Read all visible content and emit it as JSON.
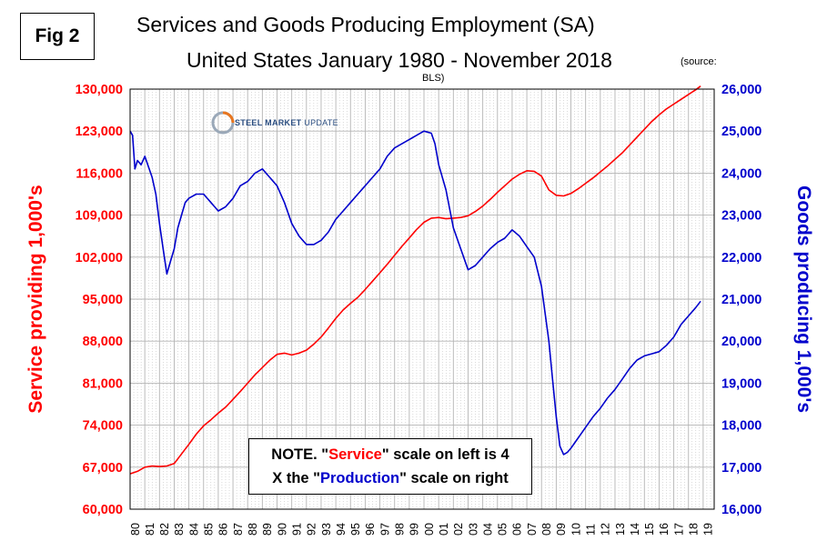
{
  "fig_label": "Fig 2",
  "title_line1": "Services and Goods Producing Employment (SA)",
  "title_line2": "United States January 1980 - November 2018",
  "source_part1": "(source:",
  "source_part2": "BLS)",
  "logo": {
    "bold": "STEEL MARKET",
    "light": "UPDATE"
  },
  "note": {
    "prefix1": "NOTE. \"",
    "service": "Service",
    "suffix1": "\" scale on left  is 4",
    "prefix2": "X the \"",
    "production": "Production",
    "suffix2": "\" scale on right"
  },
  "colors": {
    "service": "#ff0000",
    "goods": "#0000cc",
    "grid": "#b4b4b4"
  },
  "chart_data": {
    "type": "line",
    "title": "Services and Goods Producing Employment (SA) United States January 1980 - November 2018",
    "ylabel_left": "Service providing 1,000's",
    "ylabel_right": "Goods producing 1,000's",
    "ylim_left": [
      60000,
      130000
    ],
    "ylim_right": [
      16000,
      26000
    ],
    "yticks_left": [
      "130,000",
      "123,000",
      "116,000",
      "109,000",
      "102,000",
      "95,000",
      "88,000",
      "81,000",
      "74,000",
      "67,000",
      "60,000"
    ],
    "yticks_right": [
      "26,000",
      "25,000",
      "24,000",
      "23,000",
      "22,000",
      "21,000",
      "20,000",
      "19,000",
      "18,000",
      "17,000",
      "16,000"
    ],
    "xlim": [
      1980.0,
      2019.75
    ],
    "xticks": [
      "80",
      "81",
      "82",
      "83",
      "84",
      "85",
      "86",
      "87",
      "88",
      "89",
      "90",
      "91",
      "92",
      "93",
      "94",
      "95",
      "96",
      "97",
      "98",
      "99",
      "00",
      "01",
      "02",
      "03",
      "04",
      "05",
      "06",
      "07",
      "08",
      "09",
      "10",
      "11",
      "12",
      "13",
      "14",
      "15",
      "16",
      "17",
      "18",
      "19"
    ],
    "grid": true,
    "series": [
      {
        "name": "Service",
        "axis": "left",
        "color": "#ff0000",
        "x": [
          1980.0,
          1980.5,
          1981.0,
          1981.5,
          1982.0,
          1982.5,
          1983.0,
          1983.5,
          1984.0,
          1984.5,
          1985.0,
          1985.5,
          1986.0,
          1986.5,
          1987.0,
          1987.5,
          1988.0,
          1988.5,
          1989.0,
          1989.5,
          1990.0,
          1990.5,
          1991.0,
          1991.5,
          1992.0,
          1992.5,
          1993.0,
          1993.5,
          1994.0,
          1994.5,
          1995.0,
          1995.5,
          1996.0,
          1996.5,
          1997.0,
          1997.5,
          1998.0,
          1998.5,
          1999.0,
          1999.5,
          2000.0,
          2000.5,
          2001.0,
          2001.5,
          2002.0,
          2002.5,
          2003.0,
          2003.5,
          2004.0,
          2004.5,
          2005.0,
          2005.5,
          2006.0,
          2006.5,
          2007.0,
          2007.5,
          2008.0,
          2008.5,
          2009.0,
          2009.5,
          2010.0,
          2010.5,
          2011.0,
          2011.5,
          2012.0,
          2012.5,
          2013.0,
          2013.5,
          2014.0,
          2014.5,
          2015.0,
          2015.5,
          2016.0,
          2016.5,
          2017.0,
          2017.5,
          2018.0,
          2018.5,
          2018.83
        ],
        "values": [
          65900,
          66300,
          67000,
          67200,
          67100,
          67200,
          67600,
          69200,
          70800,
          72500,
          73900,
          74900,
          76000,
          77000,
          78300,
          79600,
          81000,
          82400,
          83600,
          84800,
          85800,
          86000,
          85700,
          86000,
          86500,
          87500,
          88700,
          90200,
          91800,
          93200,
          94300,
          95300,
          96600,
          98000,
          99400,
          100800,
          102300,
          103800,
          105200,
          106600,
          107800,
          108500,
          108600,
          108400,
          108500,
          108600,
          108900,
          109600,
          110500,
          111600,
          112800,
          113900,
          115000,
          115800,
          116400,
          116300,
          115500,
          113200,
          112300,
          112200,
          112600,
          113400,
          114300,
          115200,
          116200,
          117200,
          118300,
          119400,
          120700,
          122000,
          123300,
          124600,
          125700,
          126700,
          127500,
          128300,
          129100,
          129900,
          130500
        ]
      },
      {
        "name": "Goods",
        "axis": "right",
        "color": "#0000cc",
        "x": [
          1980.0,
          1980.17,
          1980.33,
          1980.5,
          1980.75,
          1981.0,
          1981.5,
          1981.75,
          1982.0,
          1982.25,
          1982.5,
          1982.75,
          1983.0,
          1983.25,
          1983.5,
          1983.75,
          1984.0,
          1984.5,
          1985.0,
          1985.5,
          1986.0,
          1986.5,
          1987.0,
          1987.5,
          1988.0,
          1988.5,
          1989.0,
          1989.5,
          1990.0,
          1990.5,
          1991.0,
          1991.5,
          1992.0,
          1992.5,
          1993.0,
          1993.5,
          1994.0,
          1994.5,
          1995.0,
          1995.5,
          1996.0,
          1996.5,
          1997.0,
          1997.5,
          1998.0,
          1998.5,
          1999.0,
          1999.5,
          2000.0,
          2000.5,
          2000.75,
          2001.0,
          2001.5,
          2002.0,
          2002.5,
          2003.0,
          2003.5,
          2004.0,
          2004.5,
          2005.0,
          2005.5,
          2006.0,
          2006.5,
          2007.0,
          2007.5,
          2008.0,
          2008.5,
          2008.75,
          2009.0,
          2009.25,
          2009.5,
          2009.75,
          2010.0,
          2010.5,
          2011.0,
          2011.5,
          2012.0,
          2012.5,
          2013.0,
          2013.5,
          2014.0,
          2014.5,
          2015.0,
          2015.5,
          2016.0,
          2016.5,
          2017.0,
          2017.5,
          2018.0,
          2018.5,
          2018.83
        ],
        "values": [
          25000,
          24900,
          24100,
          24300,
          24200,
          24400,
          23900,
          23500,
          22800,
          22200,
          21600,
          21900,
          22200,
          22700,
          23000,
          23300,
          23400,
          23500,
          23500,
          23300,
          23100,
          23200,
          23400,
          23700,
          23800,
          24000,
          24100,
          23900,
          23700,
          23300,
          22800,
          22500,
          22300,
          22300,
          22400,
          22600,
          22900,
          23100,
          23300,
          23500,
          23700,
          23900,
          24100,
          24400,
          24600,
          24700,
          24800,
          24900,
          25000,
          24950,
          24700,
          24200,
          23600,
          22700,
          22200,
          21700,
          21800,
          22000,
          22200,
          22350,
          22450,
          22650,
          22500,
          22250,
          22000,
          21300,
          20000,
          19100,
          18200,
          17500,
          17300,
          17350,
          17450,
          17700,
          17950,
          18200,
          18400,
          18650,
          18850,
          19100,
          19350,
          19550,
          19650,
          19700,
          19750,
          19900,
          20100,
          20400,
          20600,
          20800,
          20950
        ]
      }
    ]
  }
}
